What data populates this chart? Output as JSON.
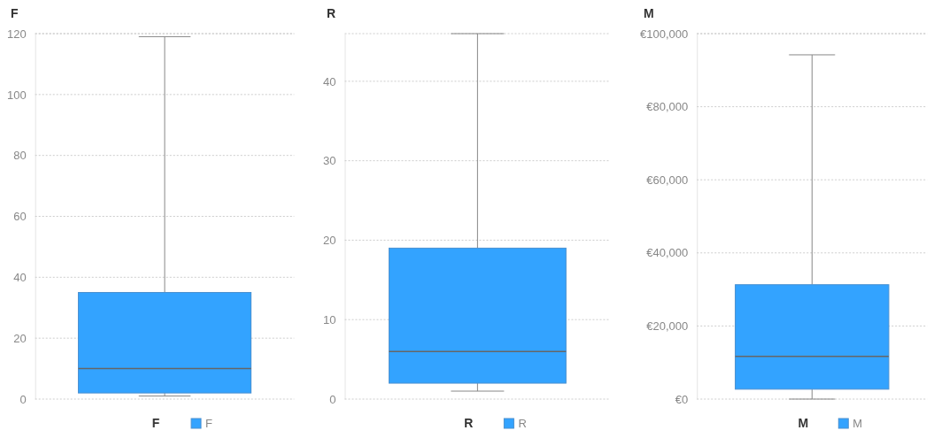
{
  "chart_data": [
    {
      "type": "box",
      "title": "F",
      "xlabel": "F",
      "categories": [
        null
      ],
      "series": [
        {
          "name": "F",
          "color": "#33a3ff",
          "boxes": [
            {
              "low": 1,
              "q1": 2,
              "median": 10,
              "q3": 35,
              "high": 119
            }
          ]
        }
      ],
      "ylim": [
        0,
        120
      ],
      "yticks": [
        0,
        20,
        40,
        60,
        80,
        100,
        120
      ],
      "grid": "y",
      "legend": "bottom"
    },
    {
      "type": "box",
      "title": "R",
      "xlabel": "R",
      "categories": [
        null
      ],
      "series": [
        {
          "name": "R",
          "color": "#33a3ff",
          "boxes": [
            {
              "low": 1,
              "q1": 2,
              "median": 6,
              "q3": 19,
              "high": 46
            }
          ]
        }
      ],
      "ylim": [
        0,
        46
      ],
      "yticks": [
        0,
        10,
        20,
        30,
        40
      ],
      "grid": "y",
      "legend": "bottom"
    },
    {
      "type": "box",
      "title": "M",
      "xlabel": "M",
      "categories": [
        null
      ],
      "series": [
        {
          "name": "M",
          "color": "#33a3ff",
          "boxes": [
            {
              "low": 0,
              "q1": 2700,
              "median": 11700,
              "q3": 31300,
              "high": 94200
            }
          ]
        }
      ],
      "ylim": [
        0,
        100000
      ],
      "yticks": [
        {
          "value": 0,
          "label": "€0"
        },
        {
          "value": 20000,
          "label": "€20,000"
        },
        {
          "value": 40000,
          "label": "€40,000"
        },
        {
          "value": 60000,
          "label": "€60,000"
        },
        {
          "value": 80000,
          "label": "€80,000"
        },
        {
          "value": 100000,
          "label": "€100,000"
        }
      ],
      "grid": "y",
      "legend": "bottom"
    }
  ]
}
